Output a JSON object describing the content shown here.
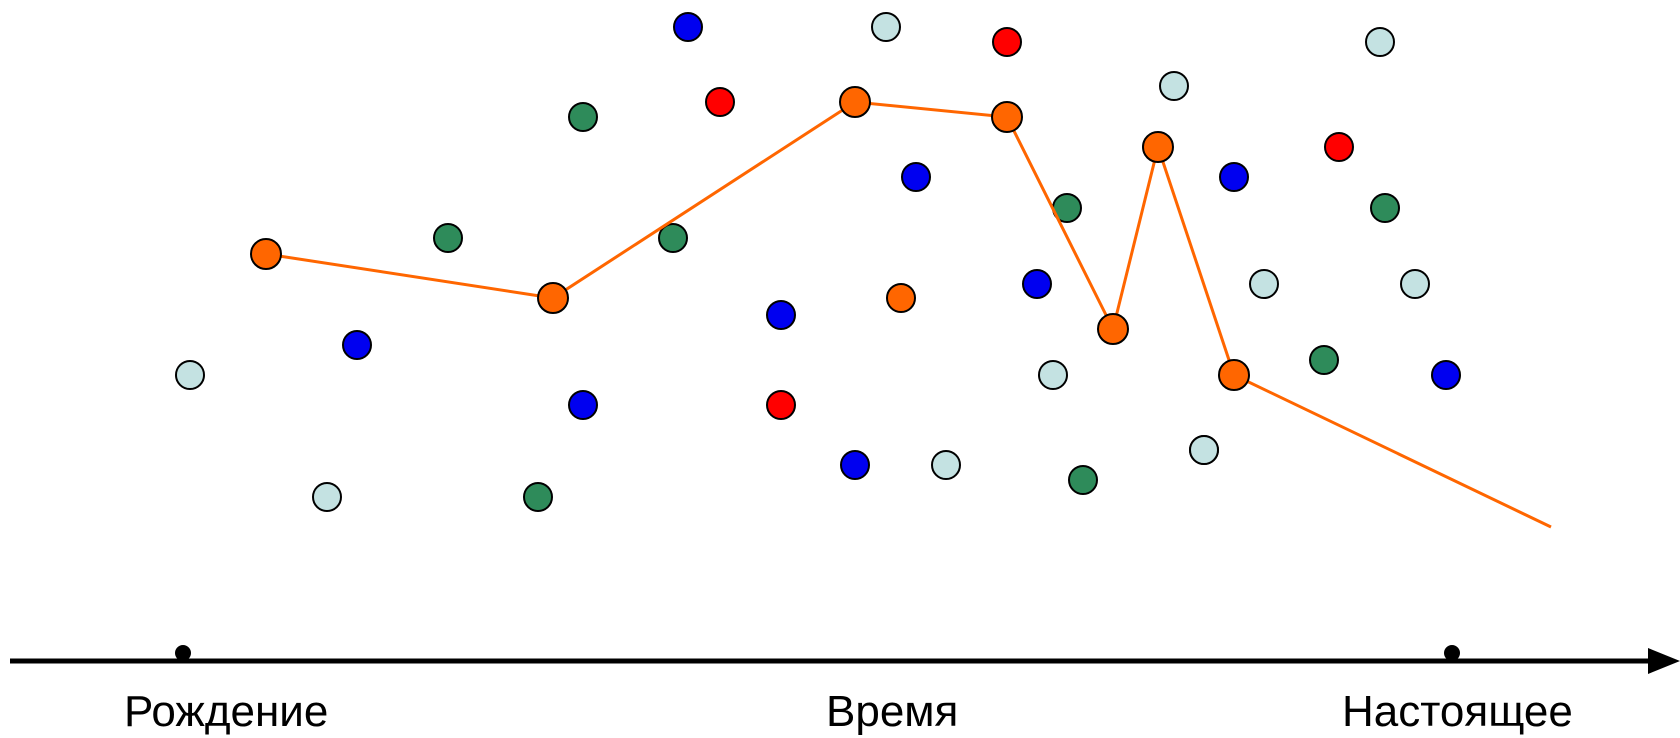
{
  "labels": {
    "birth": "Рождение",
    "time": "Время",
    "present": "Настоящее"
  },
  "colors": {
    "lightblue": "#c4e2e2",
    "blue": "#0000f0",
    "green": "#2e8b5a",
    "red": "#ff0000",
    "orange": "#ff6600",
    "line": "#ff6600",
    "axis": "#000000"
  },
  "dots": [
    {
      "c": "lightblue"
    },
    {
      "c": "blue"
    },
    {
      "c": "lightblue"
    },
    {
      "c": "red"
    },
    {
      "c": "green"
    },
    {
      "c": "red"
    },
    {
      "c": "blue"
    },
    {
      "c": "green"
    },
    {
      "c": "blue"
    },
    {
      "c": "lightblue"
    },
    {
      "c": "green"
    },
    {
      "c": "green"
    },
    {
      "c": "blue"
    },
    {
      "c": "blue"
    },
    {
      "c": "red"
    },
    {
      "c": "lightblue"
    },
    {
      "c": "blue"
    },
    {
      "c": "orange"
    },
    {
      "c": "lightblue"
    },
    {
      "c": "lightblue"
    },
    {
      "c": "green"
    },
    {
      "c": "blue"
    },
    {
      "c": "lightblue"
    },
    {
      "c": "green"
    },
    {
      "c": "lightblue"
    },
    {
      "c": "lightblue"
    },
    {
      "c": "blue"
    },
    {
      "c": "lightblue"
    },
    {
      "c": "red"
    },
    {
      "c": "green"
    },
    {
      "c": "green"
    },
    {
      "c": "lightblue"
    },
    {
      "c": "blue"
    }
  ],
  "path_node_count": 9
}
